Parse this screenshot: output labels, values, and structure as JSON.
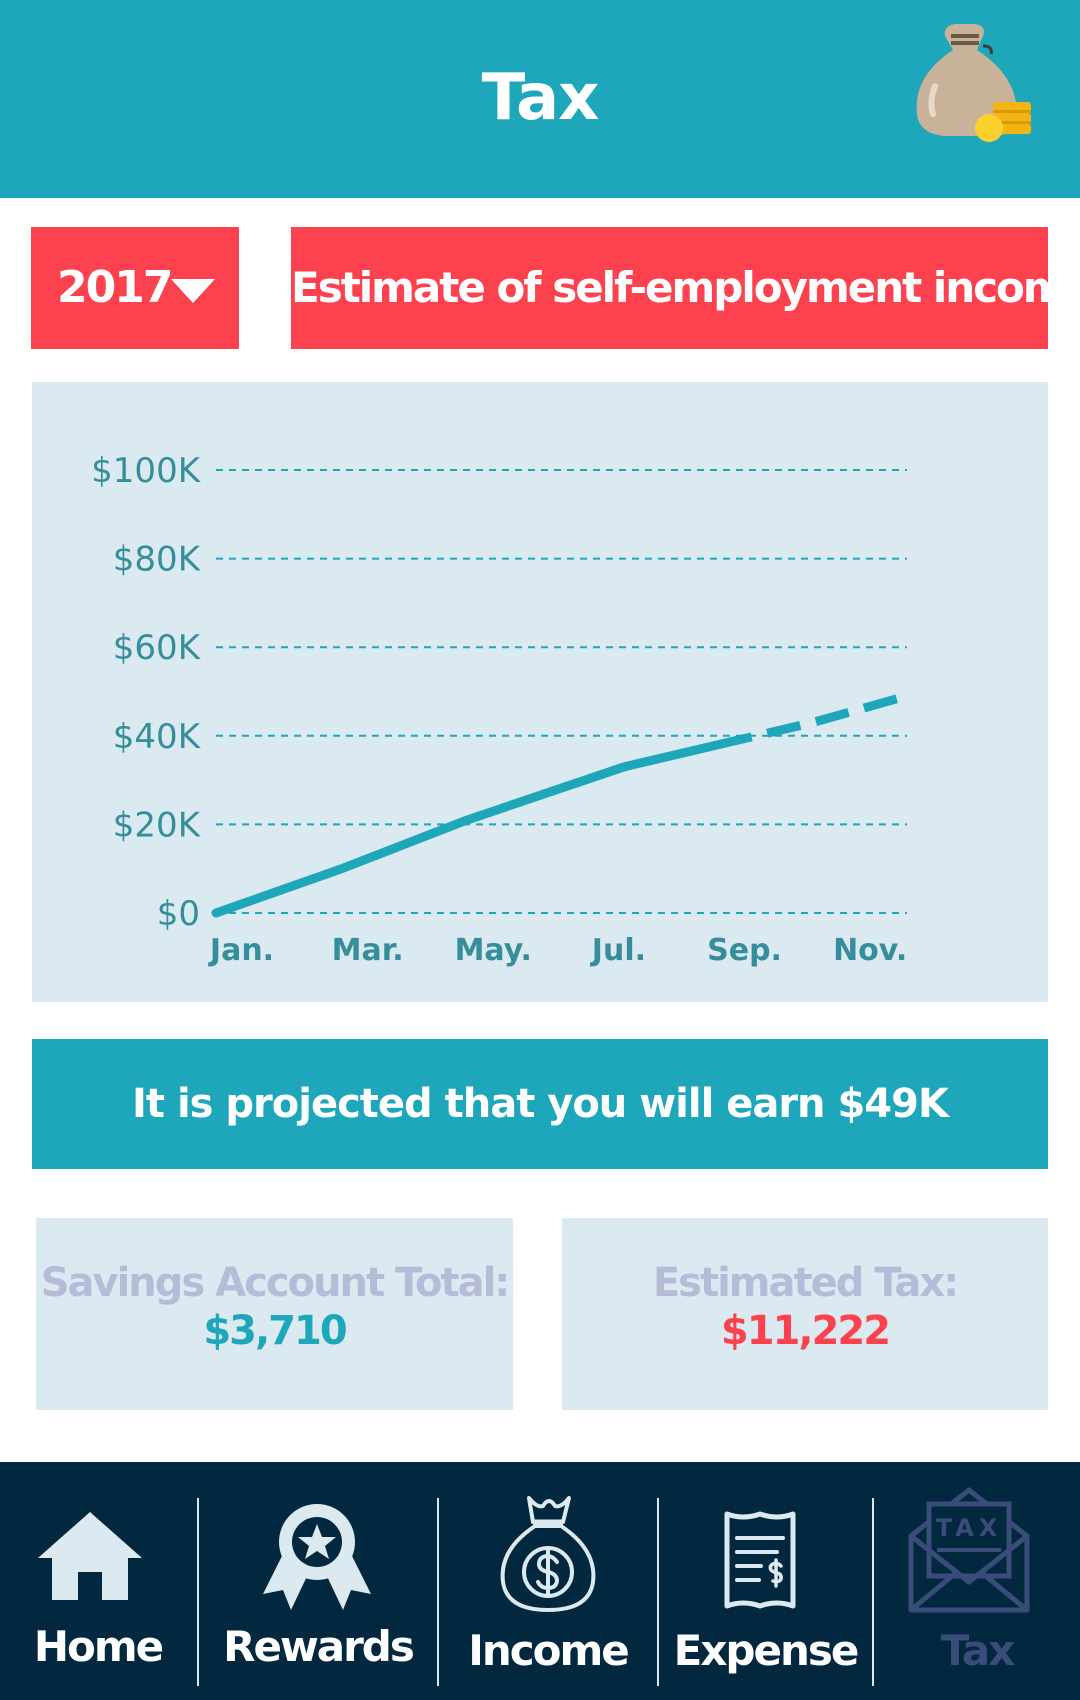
{
  "header": {
    "title": "Tax",
    "icon": "money-bag-icon"
  },
  "controls": {
    "year": "2017",
    "report_title": "Estimate of self-employment income"
  },
  "chart_data": {
    "type": "line",
    "title": "",
    "xlabel": "",
    "ylabel": "",
    "y_tick_labels": [
      "$0",
      "$20K",
      "$40K",
      "$60K",
      "$80K",
      "$100K"
    ],
    "x_tick_labels": [
      "Jan.",
      "Mar.",
      "May.",
      "Jul.",
      "Sep.",
      "Nov."
    ],
    "ylim": [
      0,
      100000
    ],
    "xlim": [
      1,
      12
    ],
    "grid": "horizontal dashed",
    "series": [
      {
        "style": "solid",
        "x": [
          1,
          3,
          5,
          7.5,
          9
        ],
        "y": [
          0,
          10000,
          21000,
          33000,
          38000
        ]
      },
      {
        "style": "dashed",
        "x": [
          9,
          10.5,
          12
        ],
        "y": [
          38000,
          43000,
          49000
        ]
      }
    ],
    "colors": {
      "line": "#1ea6ba",
      "grid": "#1ea6ba",
      "tick": "#368d9b"
    }
  },
  "projection": {
    "text": "It is projected that you will earn $49K"
  },
  "stats": {
    "savings_label": "Savings Account Total:",
    "savings_value": "$3,710",
    "tax_label": "Estimated Tax:",
    "tax_value": "$11,222"
  },
  "nav": {
    "items": [
      {
        "label": "Home",
        "icon": "home-icon"
      },
      {
        "label": "Rewards",
        "icon": "award-ribbon-icon"
      },
      {
        "label": "Income",
        "icon": "dollar-bag-icon"
      },
      {
        "label": "Expense",
        "icon": "receipt-icon"
      },
      {
        "label": "Tax",
        "icon": "tax-envelope-icon",
        "active": true
      }
    ]
  },
  "colors": {
    "primary": "#1ea6ba",
    "accent": "#fd424f",
    "panel": "#dbeaf1",
    "nav_bg": "#022840",
    "nav_active": "#3a4d7a",
    "muted_label": "#b6bcd8",
    "tax_value": "#fd424f",
    "savings_value": "#1ea6ba"
  }
}
